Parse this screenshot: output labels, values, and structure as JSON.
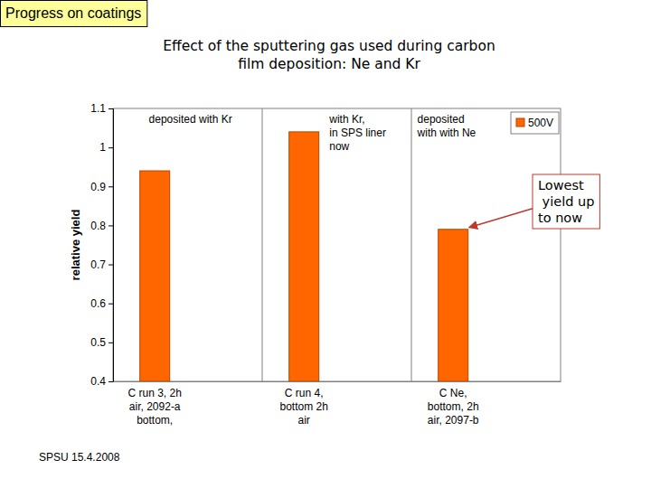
{
  "slide": {
    "header": "Progress on coatings",
    "footer": "SPSU 15.4.2008"
  },
  "chart_data": {
    "type": "bar",
    "title": "Effect of the sputtering gas used during carbon\nfilm deposition: Ne and Kr",
    "y_label": "relative yield",
    "categories": [
      "C run 3, 2h\nair, 2092-a\nbottom,",
      "C run 4,\nbottom 2h\nair",
      "C Ne,\nbottom, 2h\nair, 2097-b"
    ],
    "series": [
      {
        "name": "500V",
        "color": "#ff6600",
        "values": [
          0.94,
          1.04,
          0.79
        ]
      }
    ],
    "annotations": [
      "deposited with Kr",
      "with Kr,\nin SPS liner\nnow",
      "deposited\nwith with Ne"
    ],
    "callout": "Lowest\n yield up\nto now",
    "ylim": [
      0.4,
      1.1
    ],
    "yticks": [
      0.4,
      0.5,
      0.6,
      0.7,
      0.8,
      0.9,
      1,
      1.1
    ],
    "grid": false,
    "legend": "top-right"
  }
}
